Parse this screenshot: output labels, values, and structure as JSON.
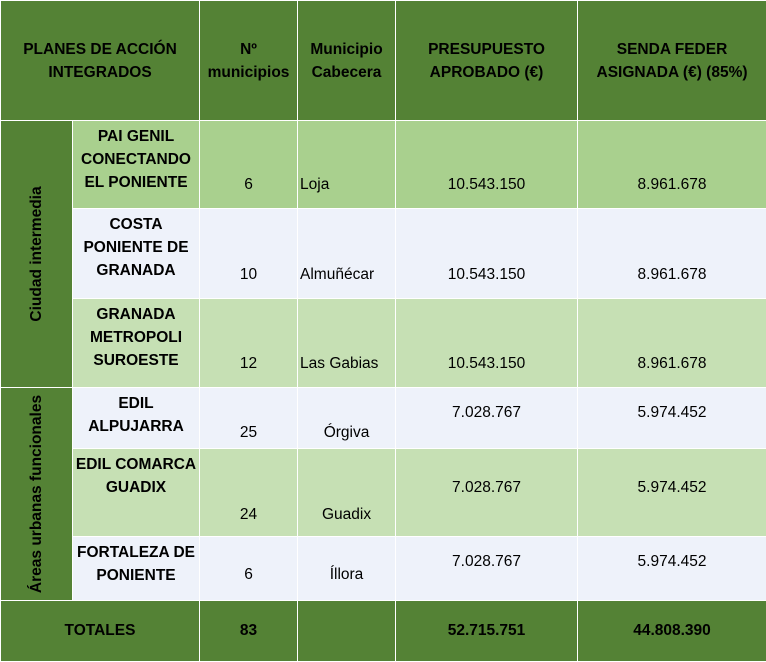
{
  "headers": {
    "plan": "PLANES DE ACCIÓN INTEGRADOS",
    "municipios": "Nº municipios",
    "cabecera": "Municipio Cabecera",
    "presupuesto": "PRESUPUESTO APROBADO (€)",
    "senda": "SENDA FEDER ASIGNADA (€) (85%)"
  },
  "groups": [
    {
      "label": "Ciudad intermedia",
      "rows": [
        {
          "plan": "PAI GENIL CONECTANDO EL PONIENTE",
          "municipios": "6",
          "cabecera": "Loja",
          "presupuesto": "10.543.150",
          "senda": "8.961.678"
        },
        {
          "plan": "COSTA PONIENTE DE GRANADA",
          "municipios": "10",
          "cabecera": "Almuñécar",
          "presupuesto": "10.543.150",
          "senda": "8.961.678"
        },
        {
          "plan": "GRANADA METROPOLI SUROESTE",
          "municipios": "12",
          "cabecera": "Las Gabias",
          "presupuesto": "10.543.150",
          "senda": "8.961.678"
        }
      ]
    },
    {
      "label": "Áreas urbanas funcionales",
      "rows": [
        {
          "plan": "EDIL ALPUJARRA",
          "municipios": "25",
          "cabecera": "Órgiva",
          "presupuesto": "7.028.767",
          "senda": "5.974.452"
        },
        {
          "plan": "EDIL COMARCA GUADIX",
          "municipios": "24",
          "cabecera": "Guadix",
          "presupuesto": "7.028.767",
          "senda": "5.974.452"
        },
        {
          "plan": "FORTALEZA DE PONIENTE",
          "municipios": "6",
          "cabecera": "Íllora",
          "presupuesto": "7.028.767",
          "senda": "5.974.452"
        }
      ]
    }
  ],
  "totals": {
    "label": "TOTALES",
    "municipios": "83",
    "presupuesto": "52.715.751",
    "senda": "44.808.390"
  },
  "colors": {
    "header": "#548235",
    "row_dark": "#a9d08e",
    "row_light": "#c6e0b4",
    "row_white": "#eef2fa"
  }
}
